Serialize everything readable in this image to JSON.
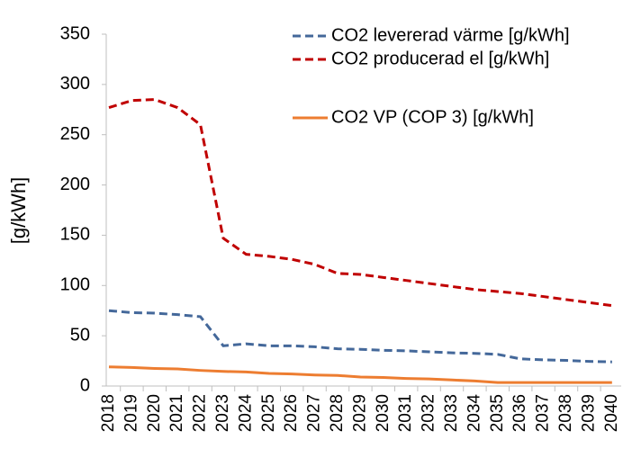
{
  "chart_data": {
    "type": "line",
    "y_label": "[g/kWh]",
    "categories": [
      "2018",
      "2019",
      "2020",
      "2021",
      "2022",
      "2023",
      "2024",
      "2025",
      "2026",
      "2027",
      "2028",
      "2029",
      "2030",
      "2031",
      "2032",
      "2033",
      "2034",
      "2035",
      "2036",
      "2037",
      "2038",
      "2039",
      "2040"
    ],
    "series": [
      {
        "name": "CO2 levererad värme [g/kWh]",
        "color": "#44689a",
        "dash": true,
        "values": [
          75,
          73,
          72.5,
          71,
          69,
          40,
          42,
          40,
          40,
          39,
          37,
          36.5,
          35.5,
          35,
          34,
          33,
          32.5,
          31.5,
          27,
          26,
          25.5,
          24.5,
          24
        ]
      },
      {
        "name": "CO2 producerad el [g/kWh]",
        "color": "#c00000",
        "dash": true,
        "values": [
          277,
          284,
          285,
          277,
          260,
          147,
          131,
          129,
          126,
          121,
          112,
          111,
          108,
          105,
          102,
          99,
          96,
          94,
          92,
          89,
          86,
          83,
          80
        ]
      },
      {
        "name": "CO2 VP (COP 3) [g/kWh]",
        "color": "#ed7d31",
        "dash": false,
        "values": [
          19,
          18.5,
          17.5,
          17,
          15.5,
          14.5,
          14,
          12.5,
          12,
          11,
          10.5,
          9,
          8.5,
          7.5,
          7,
          6,
          5,
          3.5,
          3.5,
          3.5,
          3.5,
          3.5,
          3.5
        ]
      }
    ],
    "ylim": [
      0,
      350
    ],
    "yticks": [
      0,
      50,
      100,
      150,
      200,
      250,
      300,
      350
    ],
    "grid": false
  }
}
